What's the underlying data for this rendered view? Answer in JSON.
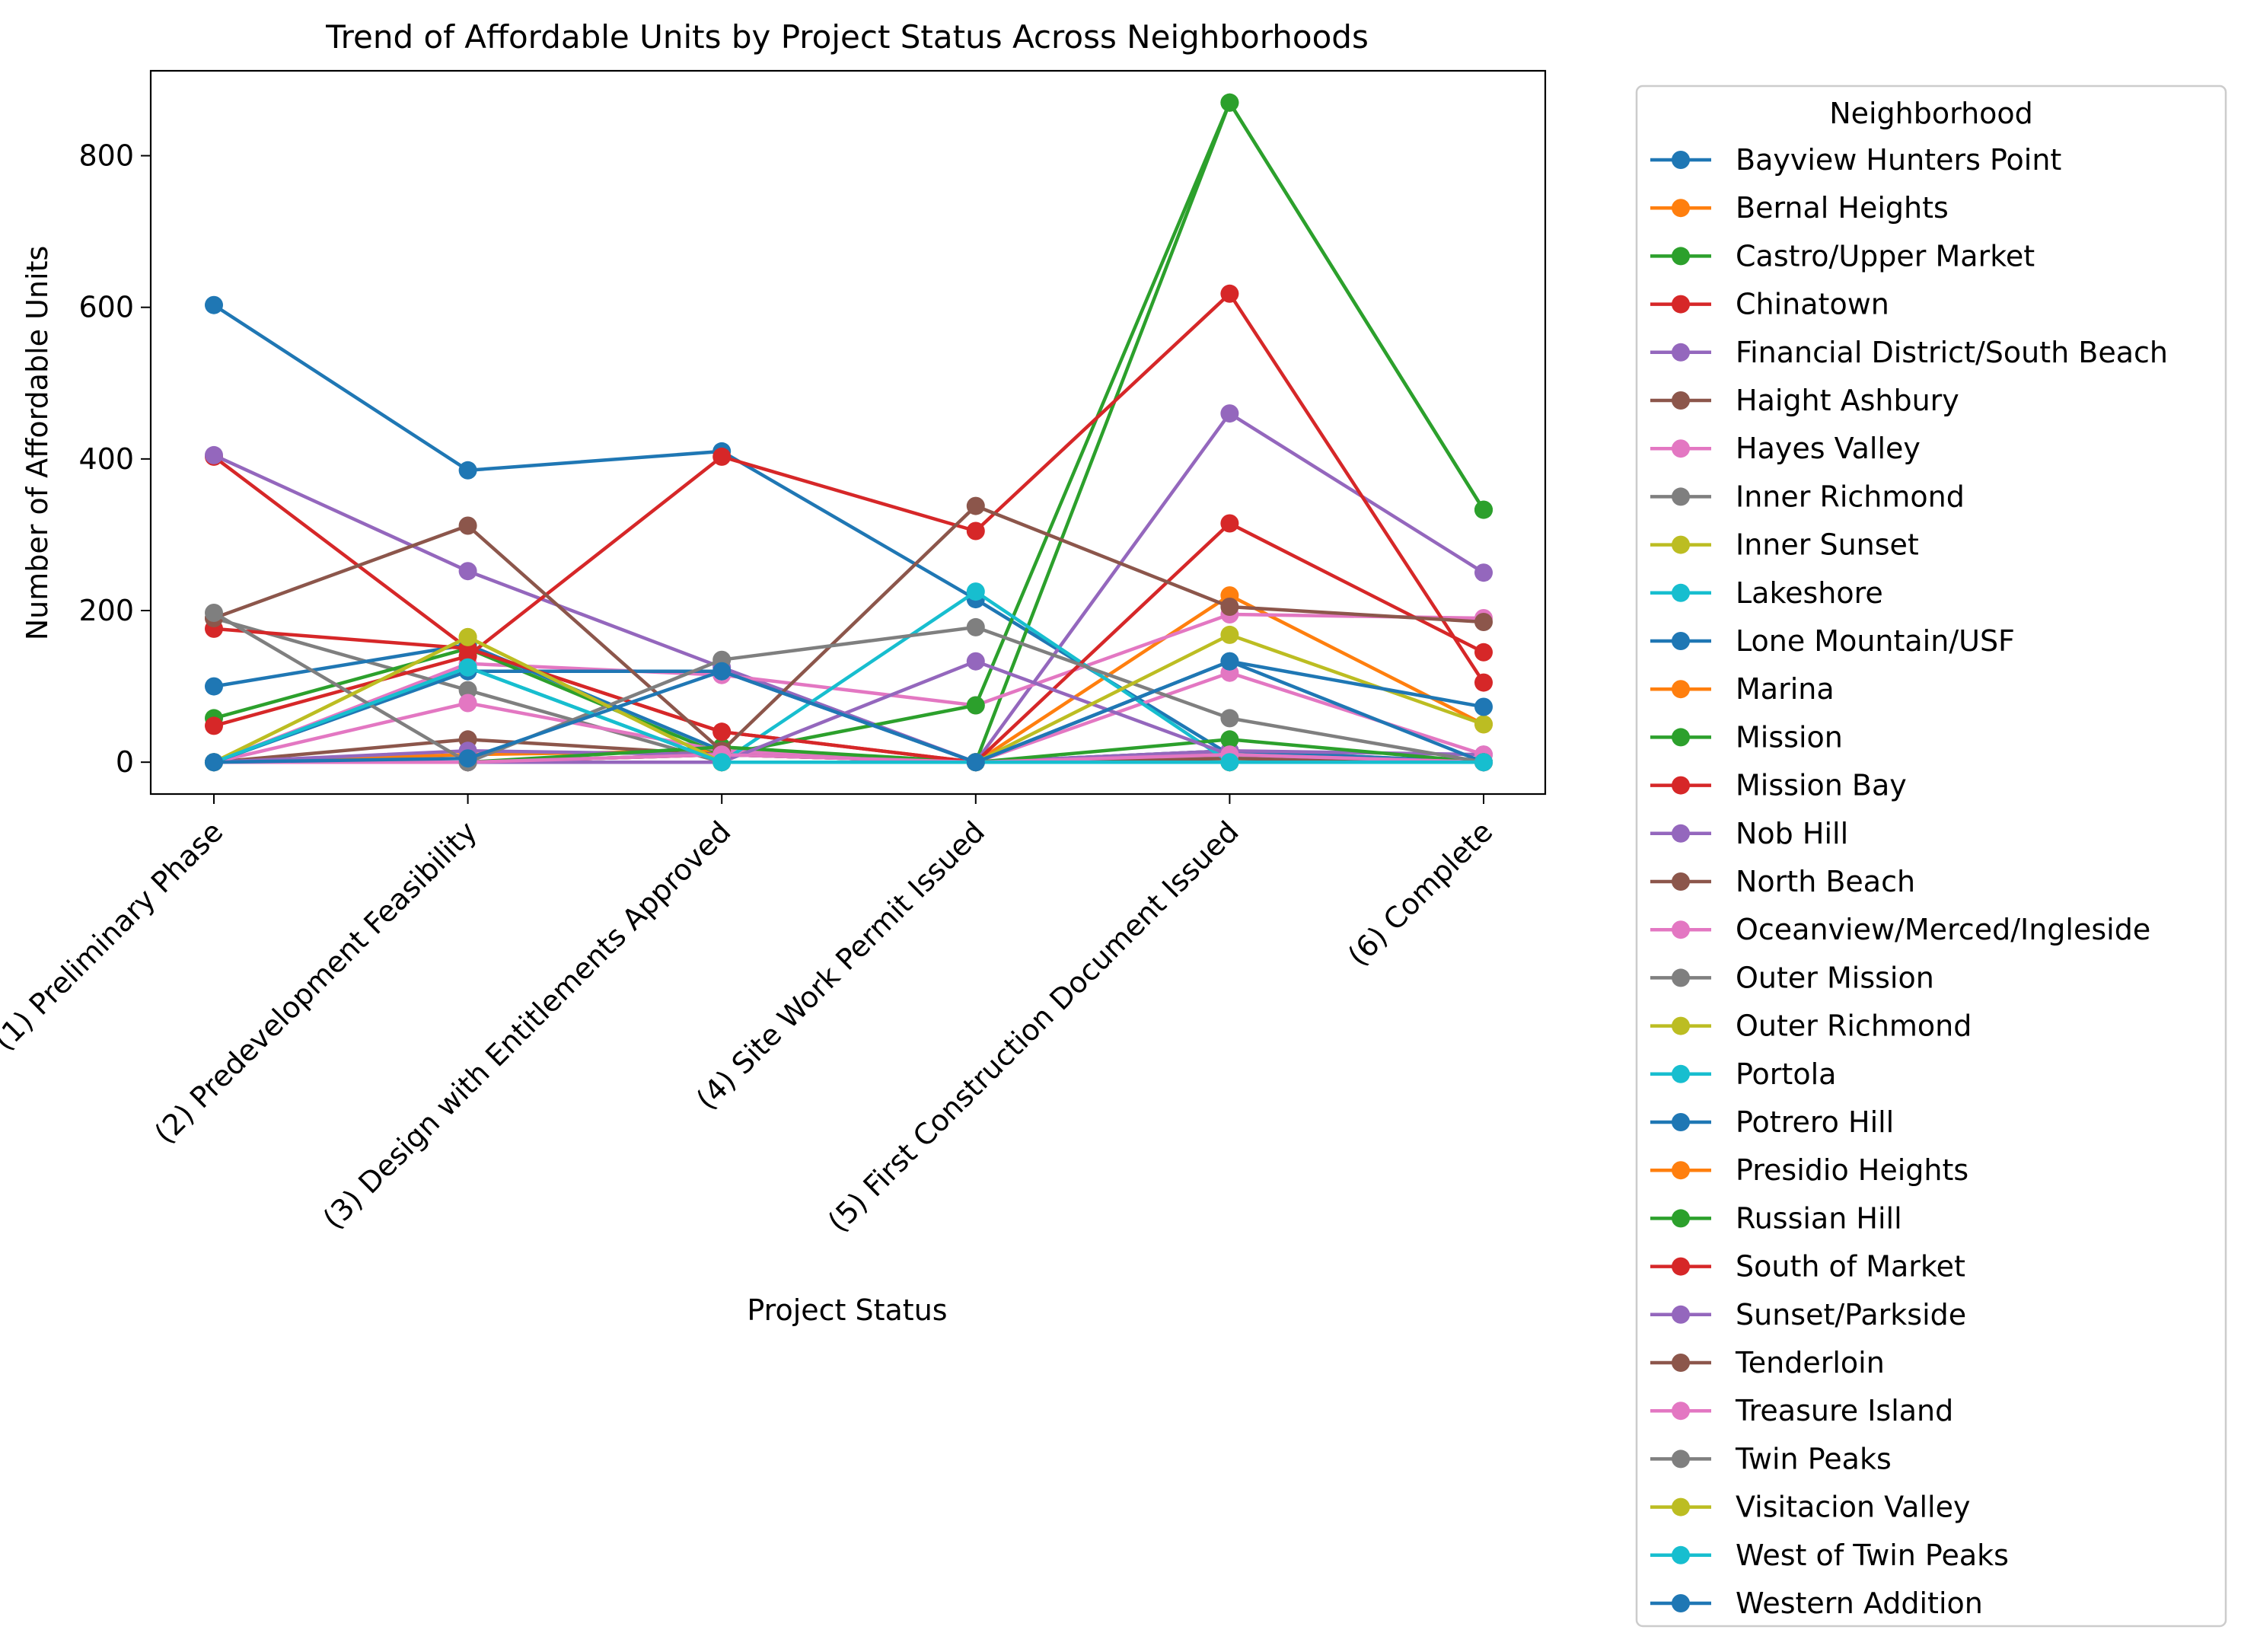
{
  "chart_data": {
    "type": "line",
    "title": "Trend of Affordable Units by Project Status Across Neighborhoods",
    "xlabel": "Project Status",
    "ylabel": "Number of Affordable Units",
    "categories": [
      "(1) Preliminary Phase",
      "(2) Predevelopment Feasibility",
      "(3) Design with Entitlements Approved",
      "(4) Site Work Permit Issued",
      "(5) First Construction Document Issued",
      "(6) Complete"
    ],
    "ylim": [
      -42,
      912
    ],
    "yticks": [
      0,
      200,
      400,
      600,
      800
    ],
    "grid": false,
    "legend": {
      "title": "Neighborhood",
      "placement": "outside-right"
    },
    "series": [
      {
        "name": "Bayview Hunters Point",
        "color": "#1f77b4",
        "values": [
          603,
          385,
          410,
          215,
          10,
          0
        ]
      },
      {
        "name": "Bernal Heights",
        "color": "#ff7f0e",
        "values": [
          0,
          10,
          15,
          0,
          220,
          50
        ]
      },
      {
        "name": "Castro/Upper Market",
        "color": "#2ca02c",
        "values": [
          0,
          0,
          0,
          0,
          870,
          333
        ]
      },
      {
        "name": "Chinatown",
        "color": "#d62728",
        "values": [
          403,
          150,
          40,
          0,
          10,
          0
        ]
      },
      {
        "name": "Financial District/South Beach",
        "color": "#9467bd",
        "values": [
          405,
          252,
          125,
          0,
          460,
          250
        ]
      },
      {
        "name": "Haight Ashbury",
        "color": "#8c564b",
        "values": [
          0,
          30,
          10,
          0,
          15,
          0
        ]
      },
      {
        "name": "Hayes Valley",
        "color": "#e377c2",
        "values": [
          0,
          130,
          115,
          75,
          195,
          190
        ]
      },
      {
        "name": "Inner Richmond",
        "color": "#7f7f7f",
        "values": [
          190,
          95,
          0,
          0,
          10,
          0
        ]
      },
      {
        "name": "Inner Sunset",
        "color": "#bcbd22",
        "values": [
          0,
          165,
          0,
          0,
          5,
          0
        ]
      },
      {
        "name": "Lakeshore",
        "color": "#17becf",
        "values": [
          0,
          125,
          0,
          0,
          5,
          0
        ]
      },
      {
        "name": "Lone Mountain/USF",
        "color": "#1f77b4",
        "values": [
          100,
          155,
          15,
          0,
          15,
          0
        ]
      },
      {
        "name": "Marina",
        "color": "#ff7f0e",
        "values": [
          0,
          0,
          10,
          0,
          0,
          0
        ]
      },
      {
        "name": "Mission",
        "color": "#2ca02c",
        "values": [
          58,
          150,
          10,
          75,
          870,
          333
        ]
      },
      {
        "name": "Mission Bay",
        "color": "#d62728",
        "values": [
          48,
          140,
          403,
          305,
          618,
          105
        ]
      },
      {
        "name": "Nob Hill",
        "color": "#9467bd",
        "values": [
          0,
          15,
          10,
          0,
          15,
          10
        ]
      },
      {
        "name": "North Beach",
        "color": "#8c564b",
        "values": [
          0,
          0,
          10,
          0,
          5,
          0
        ]
      },
      {
        "name": "Oceanview/Merced/Ingleside",
        "color": "#e377c2",
        "values": [
          0,
          78,
          15,
          0,
          118,
          10
        ]
      },
      {
        "name": "Outer Mission",
        "color": "#7f7f7f",
        "values": [
          0,
          0,
          10,
          0,
          0,
          0
        ]
      },
      {
        "name": "Outer Richmond",
        "color": "#bcbd22",
        "values": [
          0,
          0,
          0,
          0,
          0,
          0
        ]
      },
      {
        "name": "Portola",
        "color": "#17becf",
        "values": [
          0,
          0,
          0,
          225,
          0,
          0
        ]
      },
      {
        "name": "Potrero Hill",
        "color": "#1f77b4",
        "values": [
          0,
          120,
          120,
          0,
          133,
          0
        ]
      },
      {
        "name": "Presidio Heights",
        "color": "#ff7f0e",
        "values": [
          0,
          0,
          0,
          0,
          0,
          0
        ]
      },
      {
        "name": "Russian Hill",
        "color": "#2ca02c",
        "values": [
          0,
          0,
          20,
          0,
          30,
          0
        ]
      },
      {
        "name": "South of Market",
        "color": "#d62728",
        "values": [
          176,
          150,
          40,
          0,
          315,
          145
        ]
      },
      {
        "name": "Sunset/Parkside",
        "color": "#9467bd",
        "values": [
          0,
          0,
          0,
          133,
          10,
          0
        ]
      },
      {
        "name": "Tenderloin",
        "color": "#8c564b",
        "values": [
          190,
          312,
          15,
          338,
          205,
          185
        ]
      },
      {
        "name": "Treasure Island",
        "color": "#e377c2",
        "values": [
          0,
          0,
          10,
          0,
          10,
          0
        ]
      },
      {
        "name": "Twin Peaks",
        "color": "#7f7f7f",
        "values": [
          197,
          0,
          135,
          178,
          58,
          0
        ]
      },
      {
        "name": "Visitacion Valley",
        "color": "#bcbd22",
        "values": [
          0,
          165,
          0,
          0,
          168,
          50
        ]
      },
      {
        "name": "West of Twin Peaks",
        "color": "#17becf",
        "values": [
          0,
          125,
          0,
          0,
          0,
          0
        ]
      },
      {
        "name": "Western Addition",
        "color": "#1f77b4",
        "values": [
          0,
          5,
          120,
          0,
          133,
          73
        ]
      }
    ]
  }
}
